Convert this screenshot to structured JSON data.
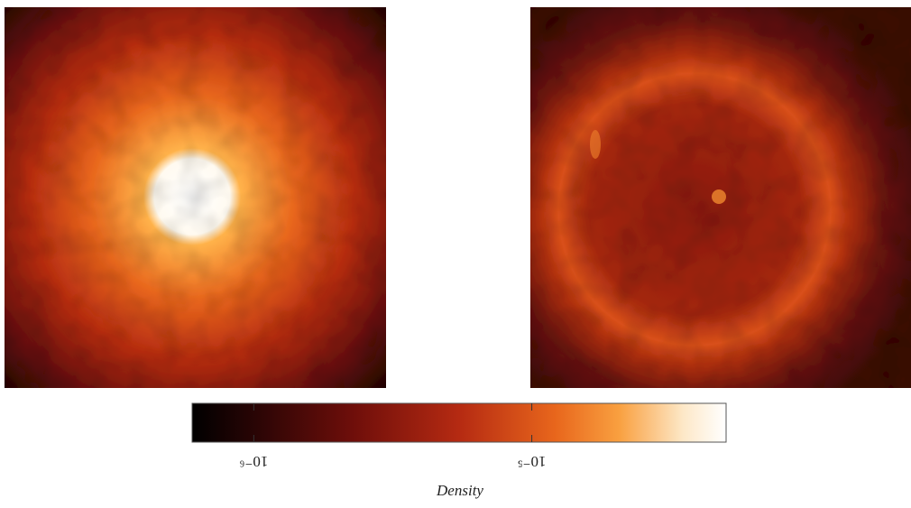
{
  "chart_data": {
    "type": "colorbar",
    "xlabel": "Density",
    "log": true,
    "xlim": [
      6e-07,
      5e-05
    ],
    "xticks": [
      {
        "value": 1e-06,
        "label": "10⁻⁶"
      },
      {
        "value": 1e-05,
        "label": "10⁻⁵"
      }
    ]
  }
}
